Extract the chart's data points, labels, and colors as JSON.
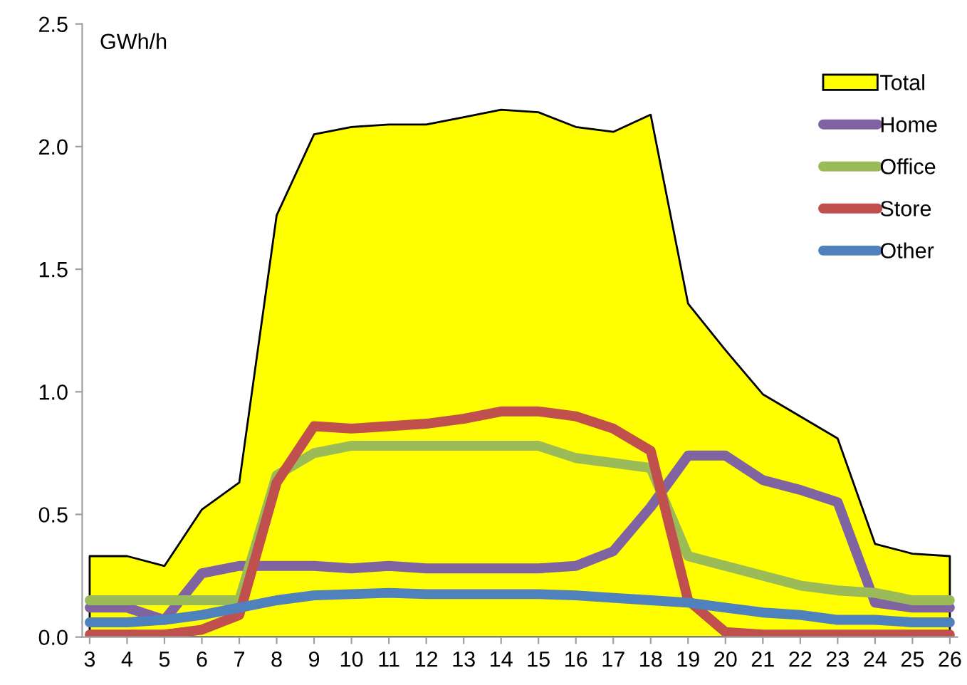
{
  "chart_data": {
    "type": "line",
    "ylabel": "GWh/h",
    "categories": [
      "3",
      "4",
      "5",
      "6",
      "7",
      "8",
      "9",
      "10",
      "11",
      "12",
      "13",
      "14",
      "15",
      "16",
      "17",
      "18",
      "19",
      "20",
      "21",
      "22",
      "23",
      "24",
      "25",
      "26"
    ],
    "series": [
      {
        "name": "Total",
        "type": "area",
        "color": "#ffff00",
        "values": [
          0.33,
          0.33,
          0.29,
          0.52,
          0.63,
          1.72,
          2.05,
          2.08,
          2.09,
          2.09,
          2.12,
          2.15,
          2.14,
          2.08,
          2.06,
          2.13,
          1.36,
          1.17,
          0.99,
          0.9,
          0.81,
          0.38,
          0.34,
          0.33
        ]
      },
      {
        "name": "Home",
        "color": "#8064a2",
        "values": [
          0.12,
          0.12,
          0.07,
          0.26,
          0.29,
          0.29,
          0.29,
          0.28,
          0.29,
          0.28,
          0.28,
          0.28,
          0.28,
          0.29,
          0.35,
          0.53,
          0.74,
          0.74,
          0.64,
          0.6,
          0.55,
          0.14,
          0.12,
          0.12
        ]
      },
      {
        "name": "Office",
        "color": "#9bbb59",
        "values": [
          0.15,
          0.15,
          0.15,
          0.15,
          0.15,
          0.66,
          0.75,
          0.78,
          0.78,
          0.78,
          0.78,
          0.78,
          0.78,
          0.73,
          0.71,
          0.69,
          0.33,
          0.29,
          0.25,
          0.21,
          0.19,
          0.18,
          0.15,
          0.15
        ]
      },
      {
        "name": "Store",
        "color": "#c0504d",
        "values": [
          0.01,
          0.01,
          0.01,
          0.03,
          0.09,
          0.63,
          0.86,
          0.85,
          0.86,
          0.87,
          0.89,
          0.92,
          0.92,
          0.9,
          0.85,
          0.76,
          0.15,
          0.02,
          0.01,
          0.01,
          0.01,
          0.01,
          0.01,
          0.01
        ]
      },
      {
        "name": "Other",
        "color": "#4f81bd",
        "values": [
          0.06,
          0.06,
          0.07,
          0.09,
          0.12,
          0.15,
          0.17,
          0.175,
          0.18,
          0.175,
          0.175,
          0.175,
          0.175,
          0.17,
          0.16,
          0.15,
          0.14,
          0.12,
          0.1,
          0.09,
          0.07,
          0.07,
          0.06,
          0.06
        ]
      }
    ],
    "ylim": [
      0,
      2.5
    ],
    "yticks": [
      {
        "value": 0,
        "label": "0.0"
      },
      {
        "value": 0.5,
        "label": "0.5"
      },
      {
        "value": 1,
        "label": "1.0"
      },
      {
        "value": 1.5,
        "label": "1.5"
      },
      {
        "value": 2,
        "label": "2.0"
      },
      {
        "value": 2.5,
        "label": "2.5"
      }
    ],
    "legend": "right",
    "grid": false
  }
}
